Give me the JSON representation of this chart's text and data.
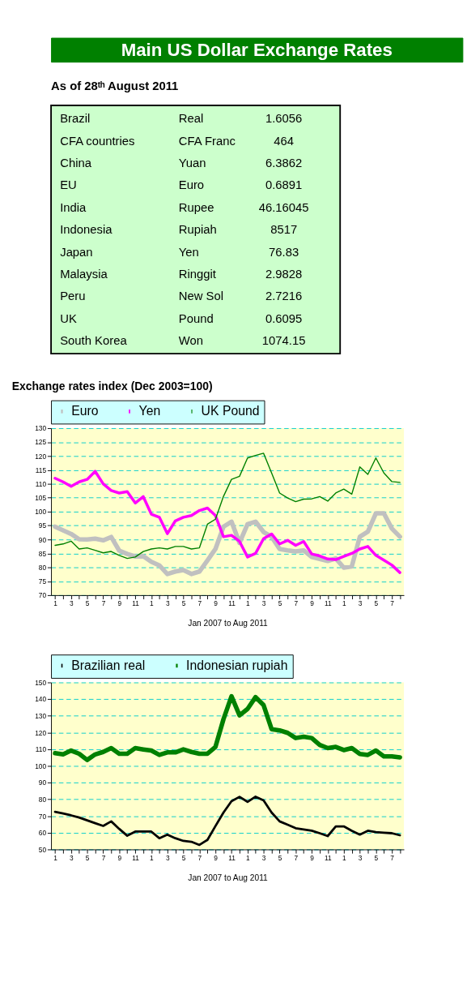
{
  "chart_data": [
    {
      "type": "other",
      "title": "Main US Dollar Exchange Rates",
      "subtitle": "As of 28ᵗʰ August 2011",
      "annotations": [
        "Brazil",
        "Real",
        "1.6056",
        "CFA countries",
        "CFA Franc",
        "464",
        "China",
        "Yuan",
        "6.3862",
        "EU",
        "Euro",
        "0.6891",
        "India",
        "Rupee",
        "46.16045",
        "Indonesia",
        "Rupiah",
        "8517",
        "Japan",
        "Yen",
        "76.83",
        "Malaysia",
        "Ringgit",
        "2.9828",
        "Peru",
        "New Sol",
        "2.7216",
        "UK",
        "Pound",
        "0.6095",
        "South Korea",
        "Won",
        "1074.15"
      ]
    },
    {
      "type": "line",
      "title": "Exchange rates index (Dec 2003=100)",
      "xlabel": "Jan 2007 to Aug  2011",
      "categories": [
        "1",
        null,
        "3",
        null,
        "5",
        null,
        "7",
        null,
        "9",
        null,
        "11",
        null,
        "1",
        null,
        "3",
        null,
        "5",
        null,
        "7",
        null,
        "9",
        null,
        "11",
        null,
        "1",
        null,
        "3",
        null,
        "5",
        null,
        "7",
        null,
        "9",
        null,
        "11",
        null,
        "1",
        null,
        "3",
        null,
        "5",
        null,
        "7",
        null
      ],
      "series": [
        {
          "name": "Euro",
          "color": "#c0c0c0",
          "values": [
            94.6,
            93.3,
            92,
            90.1,
            90,
            90.3,
            89.7,
            90.9,
            86,
            84.8,
            83.9,
            84,
            82,
            80.7,
            77.6,
            78.5,
            79,
            77.6,
            78.5,
            82.5,
            86.6,
            94.6,
            96.4,
            88.8,
            95.5,
            96.4,
            92.7,
            91,
            86.6,
            86.1,
            85.7,
            86.1,
            83.7,
            83,
            82.3,
            83.2,
            79.9,
            80.3,
            91,
            92.8,
            99.4,
            99.4,
            93.9,
            91
          ]
        },
        {
          "name": "Yen",
          "color": "#ff00ff",
          "values": [
            112,
            110.7,
            109.1,
            110.7,
            111.6,
            114.5,
            110,
            107.6,
            106.7,
            107.2,
            103.1,
            105.4,
            99.1,
            98,
            92.1,
            96.7,
            98,
            98.6,
            100.4,
            101.3,
            98.6,
            91,
            91.5,
            89.3,
            83.7,
            85,
            90.3,
            92,
            88.4,
            89.7,
            87.9,
            89.3,
            84.8,
            84.1,
            83,
            82.8,
            83.9,
            85,
            86.6,
            87.5,
            84.3,
            82.6,
            80.8,
            78.1
          ]
        },
        {
          "name": "UK Pound",
          "color": "#008000",
          "values": [
            87.9,
            88.4,
            89.4,
            86.6,
            87,
            86.1,
            85.2,
            85.7,
            84.3,
            83.2,
            83.7,
            85.7,
            86.6,
            87,
            86.6,
            87.5,
            87.5,
            86.6,
            87,
            95.5,
            97.3,
            105.5,
            111.6,
            112.7,
            119.3,
            120.2,
            121,
            113.9,
            106.7,
            104.9,
            103.6,
            104.5,
            104.6,
            105.4,
            103.8,
            106.7,
            108.1,
            106.3,
            116.1,
            113.4,
            119.3,
            113.9,
            110.8,
            110.5
          ]
        }
      ],
      "ylim": [
        70,
        130
      ],
      "yticks": [
        70,
        75,
        80,
        85,
        90,
        95,
        100,
        105,
        110,
        115,
        120,
        125,
        130
      ],
      "grid": "y",
      "legend": "top"
    },
    {
      "type": "line",
      "xlabel": "Jan 2007 to Aug 2011",
      "categories": [
        "1",
        null,
        "3",
        null,
        "5",
        null,
        "7",
        null,
        "9",
        null,
        "11",
        null,
        "1",
        null,
        "3",
        null,
        "5",
        null,
        "7",
        null,
        "9",
        null,
        "11",
        null,
        "1",
        null,
        "3",
        null,
        "5",
        null,
        "7",
        null,
        "9",
        null,
        "11",
        null,
        "1",
        null,
        "3",
        null,
        "5",
        null,
        "7",
        null
      ],
      "series": [
        {
          "name": "Brazilian real",
          "color": "#000000",
          "values": [
            72.5,
            71.5,
            70.4,
            69.1,
            67.4,
            65.7,
            64.1,
            66.8,
            62.3,
            58.2,
            60.7,
            60.7,
            60.7,
            56.7,
            58.9,
            56.7,
            55.1,
            54.6,
            52.7,
            55.7,
            64,
            72.1,
            78.9,
            81.5,
            78.5,
            81.6,
            79.4,
            72.1,
            66.8,
            64.8,
            62.7,
            62,
            61.2,
            59.7,
            58,
            63.8,
            63.8,
            61.2,
            58.9,
            61.2,
            60.4,
            60,
            59.7,
            58.5
          ]
        },
        {
          "name": "Indonesian rupiah",
          "color": "#008000",
          "values": [
            107.6,
            106.9,
            109.2,
            107.3,
            103.6,
            106.9,
            108.4,
            110.7,
            107.3,
            107.3,
            110.7,
            109.9,
            109.2,
            106.6,
            108.1,
            108.1,
            109.9,
            108.4,
            107.3,
            107.3,
            111.4,
            128,
            141.7,
            130.3,
            134.1,
            141.2,
            136.4,
            122,
            121.3,
            119.8,
            116.7,
            117.5,
            116.7,
            112.6,
            110.7,
            111.4,
            109.5,
            110.7,
            107.2,
            106.6,
            109.2,
            105.7,
            105.7,
            105.1
          ]
        }
      ],
      "ylim": [
        50,
        150
      ],
      "yticks": [
        50,
        60,
        70,
        80,
        90,
        100,
        110,
        120,
        130,
        140,
        150
      ],
      "grid": "y",
      "legend": "top"
    }
  ]
}
